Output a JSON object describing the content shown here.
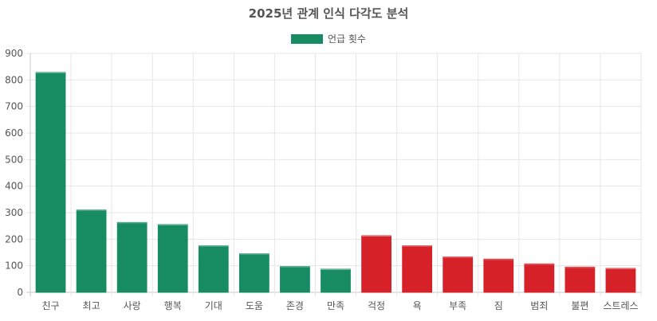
{
  "chart_data": {
    "type": "bar",
    "title": "2025년 관계 인식 다각도 분석",
    "xlabel": "",
    "ylabel": "",
    "ylim": [
      0,
      900
    ],
    "yticks": [
      0,
      100,
      200,
      300,
      400,
      500,
      600,
      700,
      800,
      900
    ],
    "grid": true,
    "legend_position": "top-center",
    "series": [
      {
        "name": "언급 횟수",
        "color": "#178c63"
      }
    ],
    "categories": [
      "친구",
      "최고",
      "사랑",
      "행복",
      "기대",
      "도움",
      "존경",
      "만족",
      "걱정",
      "욕",
      "부족",
      "짐",
      "범죄",
      "불편",
      "스트레스"
    ],
    "values": [
      828,
      310,
      263,
      255,
      175,
      145,
      97,
      87,
      213,
      175,
      133,
      125,
      107,
      95,
      90
    ],
    "colors": {
      "positive": "#178c63",
      "negative": "#d62129"
    },
    "bar_colors": [
      "positive",
      "positive",
      "positive",
      "positive",
      "positive",
      "positive",
      "positive",
      "positive",
      "negative",
      "negative",
      "negative",
      "negative",
      "negative",
      "negative",
      "negative"
    ]
  }
}
